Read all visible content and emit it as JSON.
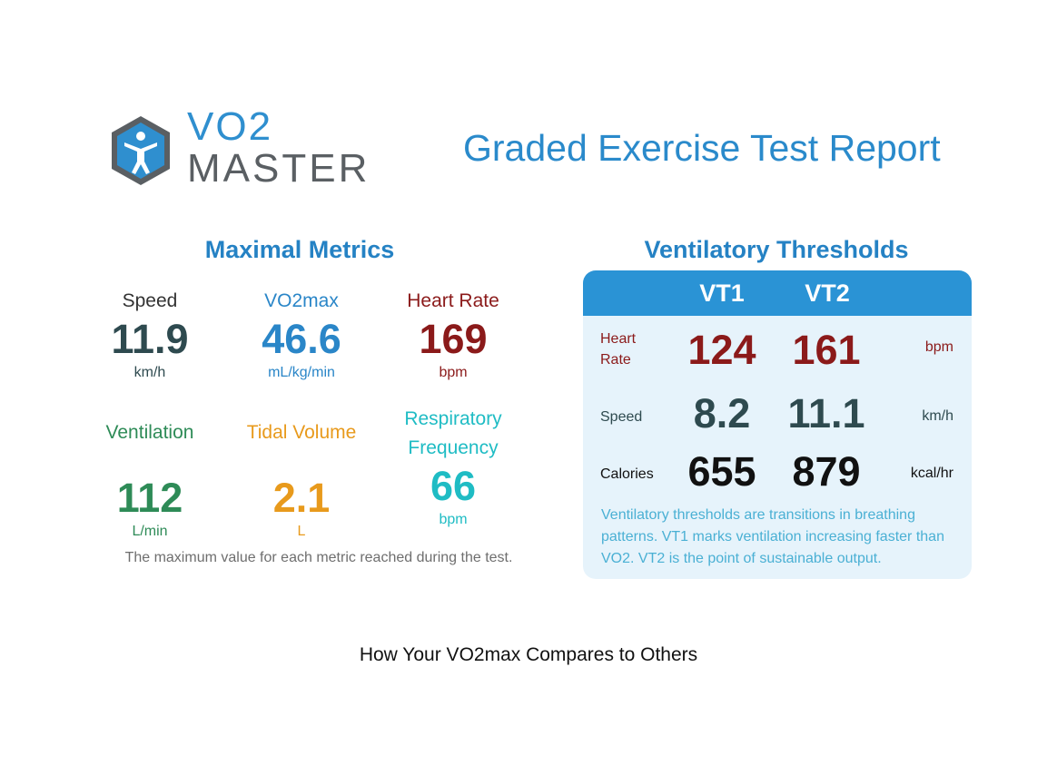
{
  "brand": {
    "line1": "VO2",
    "line2": "MASTER",
    "logo_icon": "person-hexagon-icon",
    "colors": {
      "blue": "#2f8fcf",
      "gray": "#5a5f63"
    }
  },
  "report_title": "Graded Exercise Test Report",
  "maximal_metrics": {
    "title": "Maximal Metrics",
    "items": [
      {
        "label": "Speed",
        "value": "11.9",
        "unit": "km/h",
        "color": "#2e4a4f"
      },
      {
        "label": "VO2max",
        "value": "46.6",
        "unit": "mL/kg/min",
        "color": "#2a86c8"
      },
      {
        "label": "Heart Rate",
        "value": "169",
        "unit": "bpm",
        "color": "#8b1a1a"
      },
      {
        "label": "Ventilation",
        "value": "112",
        "unit": "L/min",
        "color": "#2e8b57"
      },
      {
        "label": "Tidal Volume",
        "value": "2.1",
        "unit": "L",
        "color": "#e89a1c"
      },
      {
        "label": "Respiratory Frequency",
        "value": "66",
        "unit": "bpm",
        "color": "#1fbcc4"
      }
    ],
    "note": "The maximum value for each metric reached during the test."
  },
  "ventilatory_thresholds": {
    "title": "Ventilatory Thresholds",
    "columns": [
      "VT1",
      "VT2"
    ],
    "rows": [
      {
        "label_line1": "Heart",
        "label_line2": "Rate",
        "vt1": "124",
        "vt2": "161",
        "unit": "bpm",
        "color": "#8b1a1a"
      },
      {
        "label_line1": "Speed",
        "label_line2": "",
        "vt1": "8.2",
        "vt2": "11.1",
        "unit": "km/h",
        "color": "#2e4a4f"
      },
      {
        "label_line1": "Calories",
        "label_line2": "",
        "vt1": "655",
        "vt2": "879",
        "unit": "kcal/hr",
        "color": "#111111"
      }
    ],
    "note": "Ventilatory thresholds are transitions in breathing patterns. VT1 marks ventilation increasing faster than VO2. VT2 is the point of sustainable output."
  },
  "compare_heading": "How Your VO2max Compares to Others"
}
